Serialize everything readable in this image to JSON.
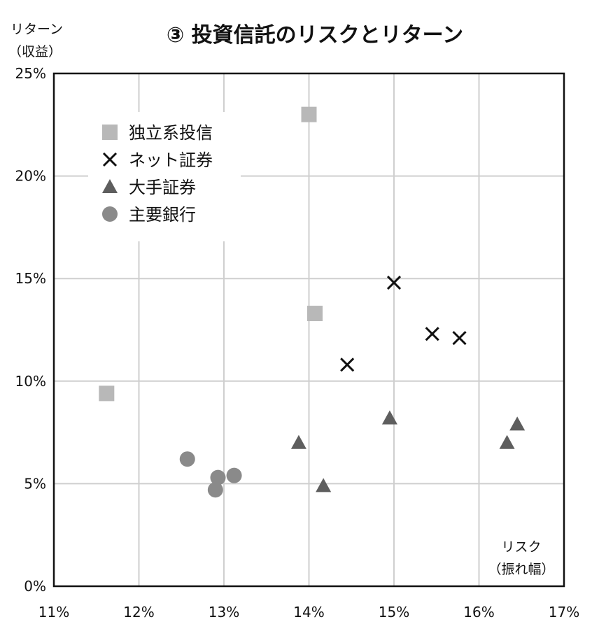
{
  "chart_data": {
    "type": "scatter",
    "title": "③ 投資信託のリスクとリターン",
    "ylabel_line1": "リターン",
    "ylabel_line2": "（収益）",
    "xlabel_line1": "リスク",
    "xlabel_line2": "（振れ幅）",
    "xlim": [
      11,
      17
    ],
    "ylim": [
      0,
      25
    ],
    "x_ticks": [
      "11%",
      "12%",
      "13%",
      "14%",
      "15%",
      "16%",
      "17%"
    ],
    "y_ticks": [
      "0%",
      "5%",
      "10%",
      "15%",
      "20%",
      "25%"
    ],
    "grid": true,
    "legend_position": "top-left",
    "series": [
      {
        "name": "独立系投信",
        "marker": "square",
        "color": "#b8b8b8",
        "points": [
          [
            14.0,
            23.0
          ],
          [
            14.07,
            13.3
          ],
          [
            11.62,
            9.4
          ]
        ]
      },
      {
        "name": "ネット証券",
        "marker": "x",
        "color": "#111111",
        "points": [
          [
            15.0,
            14.8
          ],
          [
            15.45,
            12.3
          ],
          [
            15.77,
            12.1
          ],
          [
            14.45,
            10.8
          ]
        ]
      },
      {
        "name": "大手証券",
        "marker": "triangle",
        "color": "#5e5e5e",
        "points": [
          [
            14.95,
            8.2
          ],
          [
            16.45,
            7.9
          ],
          [
            16.33,
            7.0
          ],
          [
            13.88,
            7.0
          ],
          [
            14.17,
            4.9
          ]
        ]
      },
      {
        "name": "主要銀行",
        "marker": "circle",
        "color": "#8a8a8a",
        "points": [
          [
            12.57,
            6.2
          ],
          [
            12.93,
            5.3
          ],
          [
            13.12,
            5.4
          ],
          [
            12.9,
            4.7
          ]
        ]
      }
    ]
  }
}
